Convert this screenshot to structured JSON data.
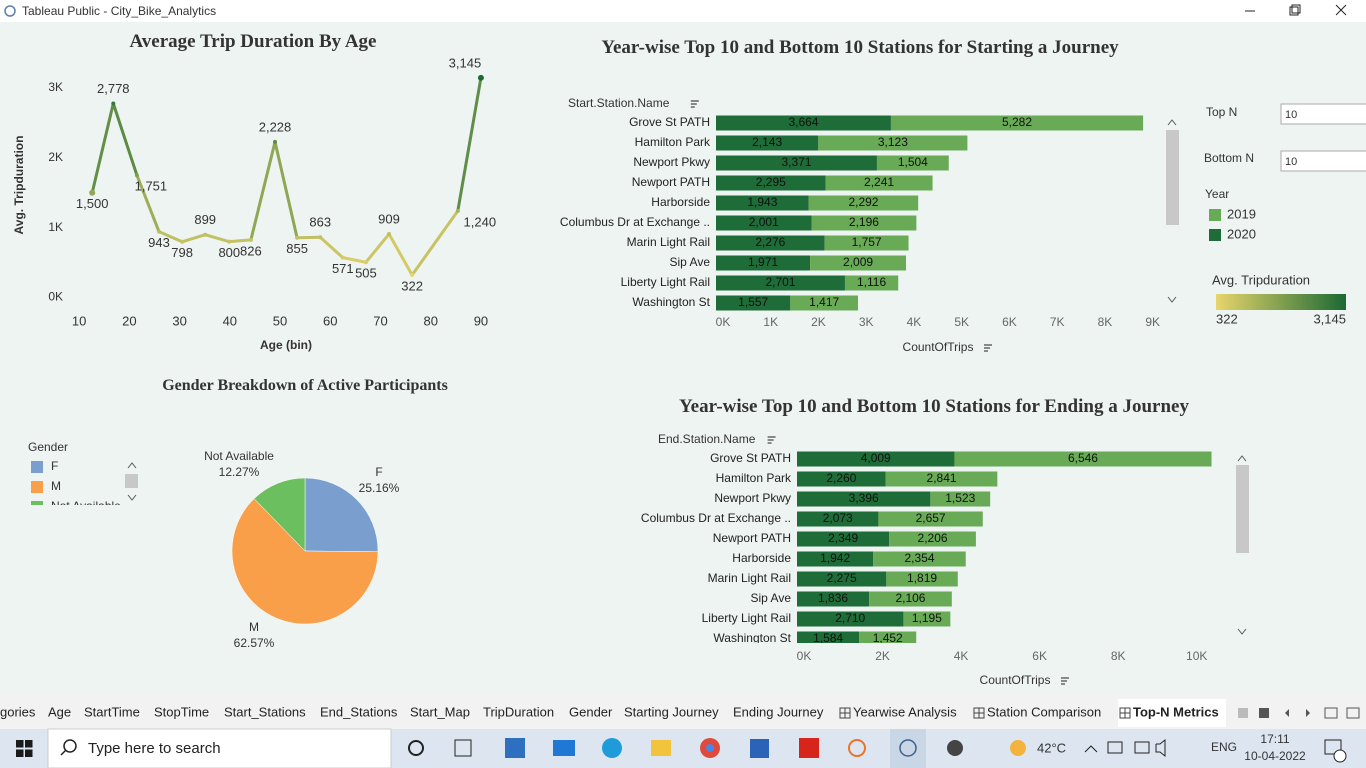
{
  "window": {
    "title": "Tableau Public - City_Bike_Analytics"
  },
  "chart_data": [
    {
      "type": "line",
      "title": "Average Trip Duration By Age",
      "x_label": "Age (bin)",
      "y_label": "Avg. Tripduration",
      "x": [
        12.6,
        16.8,
        21.5,
        25.9,
        30.5,
        35.1,
        39.9,
        44.2,
        49.0,
        53.4,
        58.0,
        62.5,
        67.1,
        71.7,
        76.3,
        85.4,
        90.0
      ],
      "values": [
        1500,
        2778,
        1751,
        943,
        798,
        899,
        800,
        826,
        2228,
        855,
        863,
        571,
        505,
        909,
        322,
        1240,
        3145
      ],
      "value_labels": [
        "1,500",
        "2,778",
        "1,751",
        "943",
        "798",
        "899",
        "800",
        "826",
        "2,228",
        "855",
        "863",
        "571",
        "505",
        "909",
        "322",
        "1,240",
        "3,145"
      ],
      "xlim": [
        4,
        93
      ],
      "ylim": [
        -250,
        3400
      ],
      "xticks": [
        10,
        20,
        30,
        40,
        50,
        60,
        70,
        80,
        90
      ],
      "yticks": [
        {
          "value": 0,
          "label": "0K"
        },
        {
          "value": 1000,
          "label": "1K"
        },
        {
          "value": 2000,
          "label": "2K"
        },
        {
          "value": 3000,
          "label": "3K"
        }
      ],
      "color_scale": {
        "title": "Avg. Tripduration",
        "colors": [
          "#e8d56c",
          "#1b6934"
        ],
        "min": 322,
        "max": {
          "value": 3145,
          "label": "3,145"
        }
      }
    },
    {
      "type": "bar",
      "orientation": "horizontal",
      "stacked": true,
      "title": "Year-wise Top 10 and Bottom 10 Stations for Starting a Journey",
      "y_label": "Start.Station.Name",
      "x_label": "CountOfTrips",
      "legend_title": "Year",
      "categories": [
        "Grove St PATH",
        "Hamilton Park",
        "Newport Pkwy",
        "Newport PATH",
        "Harborside",
        "Columbus Dr at Exchange ..",
        "Marin Light Rail",
        "Sip Ave",
        "Liberty Light Rail",
        "Washington St"
      ],
      "series": [
        {
          "name": "2020",
          "color": "#1e6c38",
          "values": [
            3664,
            2143,
            3371,
            2295,
            1943,
            2001,
            2276,
            1971,
            2701,
            1557
          ],
          "value_labels": [
            "3,664",
            "2,143",
            "3,371",
            "2,295",
            "1,943",
            "2,001",
            "2,276",
            "1,971",
            "2,701",
            "1,557"
          ]
        },
        {
          "name": "2019",
          "color": "#68aa55",
          "values": [
            5282,
            3123,
            1504,
            2241,
            2292,
            2196,
            1757,
            2009,
            1116,
            1417
          ],
          "value_labels": [
            "5,282",
            "3,123",
            "1,504",
            "2,241",
            "2,292",
            "2,196",
            "1,757",
            "2,009",
            "1,116",
            "1,417"
          ]
        }
      ],
      "xlim": [
        0,
        9300
      ],
      "xticks": [
        {
          "value": 0,
          "label": "0K"
        },
        {
          "value": 1000,
          "label": "1K"
        },
        {
          "value": 2000,
          "label": "2K"
        },
        {
          "value": 3000,
          "label": "3K"
        },
        {
          "value": 4000,
          "label": "4K"
        },
        {
          "value": 5000,
          "label": "5K"
        },
        {
          "value": 6000,
          "label": "6K"
        },
        {
          "value": 7000,
          "label": "7K"
        },
        {
          "value": 8000,
          "label": "8K"
        },
        {
          "value": 9000,
          "label": "9K"
        }
      ]
    },
    {
      "type": "bar",
      "orientation": "horizontal",
      "stacked": true,
      "title": "Year-wise Top 10 and Bottom 10 Stations for Ending a Journey",
      "y_label": "End.Station.Name",
      "x_label": "CountOfTrips",
      "categories": [
        "Grove St PATH",
        "Hamilton Park",
        "Newport Pkwy",
        "Columbus Dr at Exchange ..",
        "Newport PATH",
        "Harborside",
        "Marin Light Rail",
        "Sip Ave",
        "Liberty Light Rail",
        "Washington St"
      ],
      "series": [
        {
          "name": "2020",
          "color": "#1e6c38",
          "values": [
            4009,
            2260,
            3396,
            2073,
            2349,
            1942,
            2275,
            1836,
            2710,
            1584
          ],
          "value_labels": [
            "4,009",
            "2,260",
            "3,396",
            "2,073",
            "2,349",
            "1,942",
            "2,275",
            "1,836",
            "2,710",
            "1,584"
          ]
        },
        {
          "name": "2019",
          "color": "#68aa55",
          "values": [
            6546,
            2841,
            1523,
            2657,
            2206,
            2354,
            1819,
            2106,
            1195,
            1452
          ],
          "value_labels": [
            "6,546",
            "2,841",
            "1,523",
            "2,657",
            "2,206",
            "2,354",
            "1,819",
            "2,106",
            "1,195",
            "1,452"
          ]
        }
      ],
      "xlim": [
        0,
        11000
      ],
      "xticks": [
        {
          "value": 0,
          "label": "0K"
        },
        {
          "value": 2000,
          "label": "2K"
        },
        {
          "value": 4000,
          "label": "4K"
        },
        {
          "value": 6000,
          "label": "6K"
        },
        {
          "value": 8000,
          "label": "8K"
        },
        {
          "value": 10000,
          "label": "10K"
        }
      ]
    },
    {
      "type": "pie",
      "title": "Gender Breakdown of Active Participants",
      "legend_title": "Gender",
      "categories": [
        "F",
        "M",
        "Not Available"
      ],
      "values": [
        25.16,
        62.57,
        12.27
      ],
      "value_labels": [
        "25.16%",
        "62.57%",
        "12.27%"
      ],
      "colors": [
        "#7a9fcf",
        "#f99e49",
        "#6bbf5e"
      ]
    }
  ],
  "controls": {
    "top_n": {
      "label": "Top N",
      "value": 10
    },
    "bottom_n": {
      "label": "Bottom N",
      "value": 10
    }
  },
  "tabs": [
    "gories",
    "Age",
    "StartTime",
    "StopTime",
    "Start_Stations",
    "End_Stations",
    "Start_Map",
    "TripDuration",
    "Gender",
    "Starting Journey",
    "Ending Journey",
    "Yearwise Analysis",
    "Station Comparison",
    "Top-N Metrics"
  ],
  "active_tab": 13,
  "taskbar": {
    "search": "Type here to search",
    "temperature": "42°C",
    "language": "ENG",
    "time": "17:11",
    "date": "10-04-2022"
  }
}
